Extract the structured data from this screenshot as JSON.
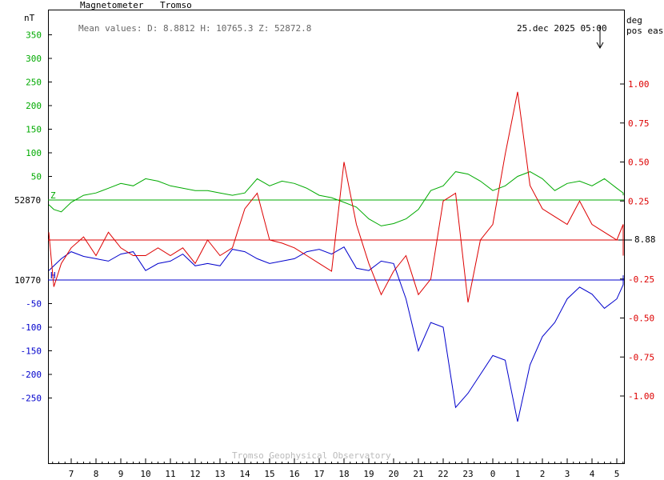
{
  "header": {
    "instrument": "Magnetometer",
    "station": "Tromso",
    "mean_values": "Mean values:  D: 8.8812   H: 10765.3   Z: 52872.8",
    "timestamp": "25.dec 2025 05:00"
  },
  "footer": {
    "credit": "Tromso Geophysical Observatory"
  },
  "colors": {
    "z": "#00aa00",
    "h": "#0000cc",
    "d": "#dd0000",
    "grid": "#000000",
    "credit": "#bbbbbb"
  },
  "chart_data": {
    "type": "line",
    "x_labels": [
      "7",
      "8",
      "9",
      "10",
      "11",
      "12",
      "13",
      "14",
      "15",
      "16",
      "17",
      "18",
      "19",
      "20",
      "21",
      "22",
      "23",
      "0",
      "1",
      "2",
      "3",
      "4",
      "5"
    ],
    "left_axis": {
      "unit": "nT",
      "positive_ticks": [
        "350",
        "300",
        "250",
        "200",
        "150",
        "100",
        "50"
      ],
      "negative_ticks": [
        "-50",
        "-100",
        "-150",
        "-200",
        "-250"
      ],
      "z_base_label": "52870",
      "h_base_label": "10770",
      "z_marker": "Z",
      "h_marker": "H",
      "range": [
        -330,
        365
      ]
    },
    "right_axis": {
      "unit": "deg",
      "unit2": "pos east",
      "ticks": [
        "1.00",
        "0.75",
        "0.50",
        "0.25",
        "-0.25",
        "-0.50",
        "-0.75",
        "-1.00"
      ],
      "tick_values": [
        1.0,
        0.75,
        0.5,
        0.25,
        -0.25,
        -0.5,
        -0.75,
        -1.0
      ],
      "d_base_label": "8.88",
      "range": [
        -1.1,
        1.15
      ]
    },
    "series": [
      {
        "key": "Z",
        "x": [
          6.0,
          6.3,
          6.6,
          7.0,
          7.5,
          8.0,
          8.5,
          9.0,
          9.5,
          10.0,
          10.5,
          11.0,
          11.5,
          12.0,
          12.5,
          13.0,
          13.5,
          14.0,
          14.5,
          15.0,
          15.5,
          16.0,
          16.5,
          17.0,
          17.5,
          18.0,
          18.5,
          19.0,
          19.5,
          20.0,
          20.5,
          21.0,
          21.5,
          22.0,
          22.5,
          23.0,
          23.5,
          24.0,
          24.5,
          25.0,
          25.5,
          26.0,
          26.5,
          27.0,
          27.5,
          28.0,
          28.5,
          29.0,
          29.5,
          30.0
        ],
        "values": [
          -10,
          -20,
          -25,
          -5,
          10,
          15,
          25,
          35,
          30,
          45,
          40,
          30,
          25,
          20,
          20,
          15,
          10,
          15,
          45,
          30,
          40,
          35,
          25,
          10,
          5,
          -5,
          -15,
          -40,
          -55,
          -50,
          -40,
          -20,
          20,
          30,
          60,
          55,
          40,
          20,
          30,
          50,
          60,
          45,
          20,
          35,
          40,
          30,
          45,
          25,
          15,
          10
        ]
      },
      {
        "key": "H",
        "x": [
          6.0,
          6.3,
          6.6,
          7.0,
          7.5,
          8.0,
          8.5,
          9.0,
          9.5,
          10.0,
          10.5,
          11.0,
          11.5,
          12.0,
          12.5,
          13.0,
          13.5,
          14.0,
          14.5,
          15.0,
          15.5,
          16.0,
          16.5,
          17.0,
          17.5,
          18.0,
          18.5,
          19.0,
          19.5,
          20.0,
          20.5,
          21.0,
          21.5,
          22.0,
          22.5,
          23.0,
          23.5,
          24.0,
          24.5,
          25.0,
          25.5,
          26.0,
          26.5,
          27.0,
          27.5,
          28.0,
          28.5,
          29.0,
          29.5,
          30.0
        ],
        "values": [
          20,
          30,
          45,
          60,
          50,
          45,
          40,
          55,
          60,
          20,
          35,
          40,
          55,
          30,
          35,
          30,
          65,
          60,
          45,
          35,
          40,
          45,
          60,
          65,
          55,
          70,
          25,
          20,
          40,
          35,
          -40,
          -150,
          -90,
          -100,
          -270,
          -240,
          -200,
          -160,
          -170,
          -300,
          -180,
          -120,
          -90,
          -40,
          -15,
          -30,
          -60,
          -40,
          -10,
          10
        ]
      },
      {
        "key": "D",
        "x": [
          6.0,
          6.3,
          6.6,
          7.0,
          7.5,
          8.0,
          8.5,
          9.0,
          9.5,
          10.0,
          10.5,
          11.0,
          11.5,
          12.0,
          12.5,
          13.0,
          13.5,
          14.0,
          14.5,
          15.0,
          15.5,
          16.0,
          16.5,
          17.0,
          17.5,
          18.0,
          18.5,
          19.0,
          19.5,
          20.0,
          20.5,
          21.0,
          21.5,
          22.0,
          22.5,
          23.0,
          23.5,
          24.0,
          24.5,
          25.0,
          25.5,
          26.0,
          26.5,
          27.0,
          27.5,
          28.0,
          28.5,
          29.0,
          29.5,
          30.0
        ],
        "values": [
          0.05,
          -0.3,
          -0.15,
          -0.05,
          0.02,
          -0.1,
          0.05,
          -0.05,
          -0.1,
          -0.1,
          -0.05,
          -0.1,
          -0.05,
          -0.15,
          0.0,
          -0.1,
          -0.05,
          0.2,
          0.3,
          0.0,
          -0.02,
          -0.05,
          -0.1,
          -0.15,
          -0.2,
          0.5,
          0.1,
          -0.15,
          -0.35,
          -0.2,
          -0.1,
          -0.35,
          -0.25,
          0.25,
          0.3,
          -0.4,
          0.0,
          0.1,
          0.55,
          0.95,
          0.35,
          0.2,
          0.15,
          0.1,
          0.25,
          0.1,
          0.05,
          0.0,
          0.1,
          -0.1
        ]
      }
    ]
  }
}
